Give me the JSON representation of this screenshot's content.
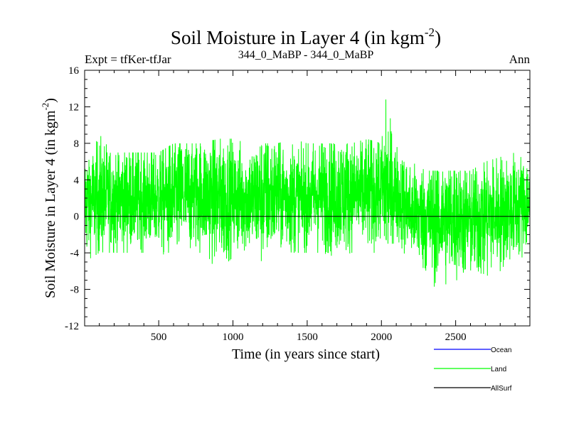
{
  "chart_data": {
    "type": "line",
    "title": "Soil Moisture in Layer 4 (in kgm",
    "title_sup": "-2",
    "title_close": ")",
    "subtitle_left": "Expt = tfKer-tfJar",
    "subtitle_center": "344_0_MaBP - 344_0_MaBP",
    "subtitle_right": "Ann",
    "xlabel": "Time (in years since start)",
    "ylabel": "Soil Moisture in Layer 4 (in kgm",
    "ylabel_sup": "-2",
    "ylabel_close": ")",
    "xlim": [
      1,
      3000
    ],
    "ylim": [
      -12,
      16
    ],
    "x_ticks": [
      500,
      1000,
      1500,
      2000,
      2500
    ],
    "y_ticks": [
      -12,
      -8,
      -4,
      0,
      4,
      8,
      12,
      16
    ],
    "y_tick_labels": [
      "-12",
      "-8",
      "-4",
      "0",
      "4",
      "8",
      "12",
      "16"
    ],
    "zero_line": true,
    "legend_placement": "bottom-right, below plot",
    "series": [
      {
        "name": "Ocean",
        "color": "#0000ff",
        "values": []
      },
      {
        "name": "Land",
        "color": "#00ff00",
        "envelope_by_century": [
          {
            "x": 0,
            "mean": 1.5,
            "min": -5,
            "max": 5
          },
          {
            "x": 100,
            "mean": 2.0,
            "min": -4,
            "max": 9
          },
          {
            "x": 200,
            "mean": 2.0,
            "min": -4,
            "max": 7
          },
          {
            "x": 300,
            "mean": 2.0,
            "min": -4,
            "max": 7
          },
          {
            "x": 400,
            "mean": 2.0,
            "min": -4,
            "max": 7
          },
          {
            "x": 500,
            "mean": 2.0,
            "min": -4,
            "max": 7
          },
          {
            "x": 600,
            "mean": 2.0,
            "min": -5.5,
            "max": 8
          },
          {
            "x": 700,
            "mean": 2.5,
            "min": -4,
            "max": 8
          },
          {
            "x": 800,
            "mean": 2.5,
            "min": -4,
            "max": 8
          },
          {
            "x": 900,
            "mean": 2.0,
            "min": -6,
            "max": 8.5
          },
          {
            "x": 1000,
            "mean": 2.0,
            "min": -4.5,
            "max": 8.5
          },
          {
            "x": 1100,
            "mean": 2.0,
            "min": -4,
            "max": 8
          },
          {
            "x": 1200,
            "mean": 2.0,
            "min": -5.5,
            "max": 8
          },
          {
            "x": 1300,
            "mean": 2.5,
            "min": -4,
            "max": 8
          },
          {
            "x": 1400,
            "mean": 2.0,
            "min": -4,
            "max": 8.5
          },
          {
            "x": 1500,
            "mean": 2.0,
            "min": -4,
            "max": 8
          },
          {
            "x": 1600,
            "mean": 2.5,
            "min": -4,
            "max": 8
          },
          {
            "x": 1700,
            "mean": 2.5,
            "min": -4.5,
            "max": 8
          },
          {
            "x": 1800,
            "mean": 2.5,
            "min": -4,
            "max": 8
          },
          {
            "x": 1900,
            "mean": 2.5,
            "min": -4,
            "max": 8.5
          },
          {
            "x": 2000,
            "mean": 3.0,
            "min": -4,
            "max": 8
          },
          {
            "x": 2030,
            "mean": 3.0,
            "min": -3,
            "max": 12.8
          },
          {
            "x": 2100,
            "mean": 2.5,
            "min": -3,
            "max": 8
          },
          {
            "x": 2200,
            "mean": 0.5,
            "min": -5,
            "max": 6
          },
          {
            "x": 2300,
            "mean": 0.0,
            "min": -6.5,
            "max": 5
          },
          {
            "x": 2370,
            "mean": -0.5,
            "min": -8,
            "max": 5
          },
          {
            "x": 2500,
            "mean": 0.0,
            "min": -7,
            "max": 5
          },
          {
            "x": 2600,
            "mean": -0.5,
            "min": -7,
            "max": 5
          },
          {
            "x": 2700,
            "mean": 0.0,
            "min": -7.5,
            "max": 6
          },
          {
            "x": 2800,
            "mean": 0.5,
            "min": -6,
            "max": 6.5
          },
          {
            "x": 2900,
            "mean": 1.0,
            "min": -5,
            "max": 7
          },
          {
            "x": 3000,
            "mean": 1.5,
            "min": -4,
            "max": 6
          }
        ]
      },
      {
        "name": "AllSurf",
        "color": "#000000",
        "values": []
      }
    ]
  }
}
